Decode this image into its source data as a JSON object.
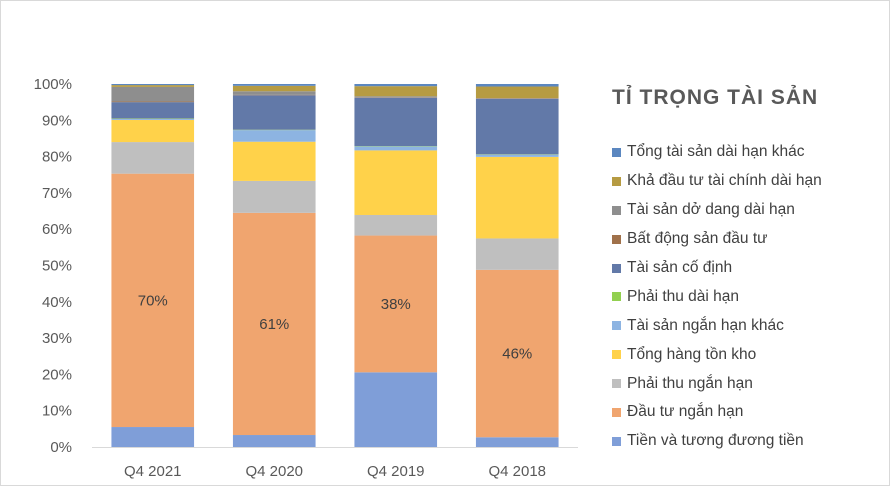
{
  "chart_data": {
    "type": "bar",
    "stacked": true,
    "percent": true,
    "title": "TỈ TRỌNG TÀI SẢN",
    "categories": [
      "Q4 2021",
      "Q4 2020",
      "Q4 2019",
      "Q4 2018"
    ],
    "ylim": [
      0,
      100
    ],
    "yticks": [
      "0%",
      "10%",
      "20%",
      "30%",
      "40%",
      "50%",
      "60%",
      "70%",
      "80%",
      "90%",
      "100%"
    ],
    "grid": false,
    "legend_position": "right",
    "series": [
      {
        "name": "Tiền và tương đương tiền",
        "color": "#7f9ed8",
        "values": [
          5.5,
          3.3,
          20.7,
          2.7
        ]
      },
      {
        "name": "Đầu tư ngắn hạn",
        "color": "#f0a56f",
        "values": [
          69.8,
          61.2,
          37.9,
          46.4
        ]
      },
      {
        "name": "Phải thu ngắn hạn",
        "color": "#bfbfbf",
        "values": [
          8.7,
          8.8,
          5.7,
          8.7
        ]
      },
      {
        "name": "Tổng hàng tồn kho",
        "color": "#ffd24a",
        "values": [
          6.1,
          10.8,
          17.9,
          22.6
        ]
      },
      {
        "name": "Tài sản ngắn hạn khác",
        "color": "#8db4e2",
        "values": [
          0.3,
          3.2,
          1.1,
          0.6
        ]
      },
      {
        "name": "Phải thu dài hạn",
        "color": "#92d050",
        "values": [
          0.1,
          0.1,
          0.1,
          0.1
        ]
      },
      {
        "name": "Tài sản cố định",
        "color": "#6279a8",
        "values": [
          4.5,
          9.5,
          13.4,
          15.4
        ]
      },
      {
        "name": "Bất động sản đầu tư",
        "color": "#a0714a",
        "values": [
          0.2,
          0.1,
          0.1,
          0.1
        ]
      },
      {
        "name": "Tài sản dở dang dài hạn",
        "color": "#8e8e8e",
        "values": [
          4.0,
          1.0,
          0.3,
          0.1
        ]
      },
      {
        "name": "Khả đầu tư tài chính dài hạn",
        "color": "#b69b42",
        "values": [
          0.5,
          1.5,
          2.8,
          3.2
        ]
      },
      {
        "name": "Tổng tài sản dài hạn khác",
        "color": "#5b87c0",
        "values": [
          0.3,
          0.5,
          0.6,
          0.7
        ]
      }
    ],
    "data_labels": {
      "series": "Đầu tư ngắn hạn",
      "labels": [
        "70%",
        "61%",
        "38%",
        "46%"
      ]
    }
  }
}
